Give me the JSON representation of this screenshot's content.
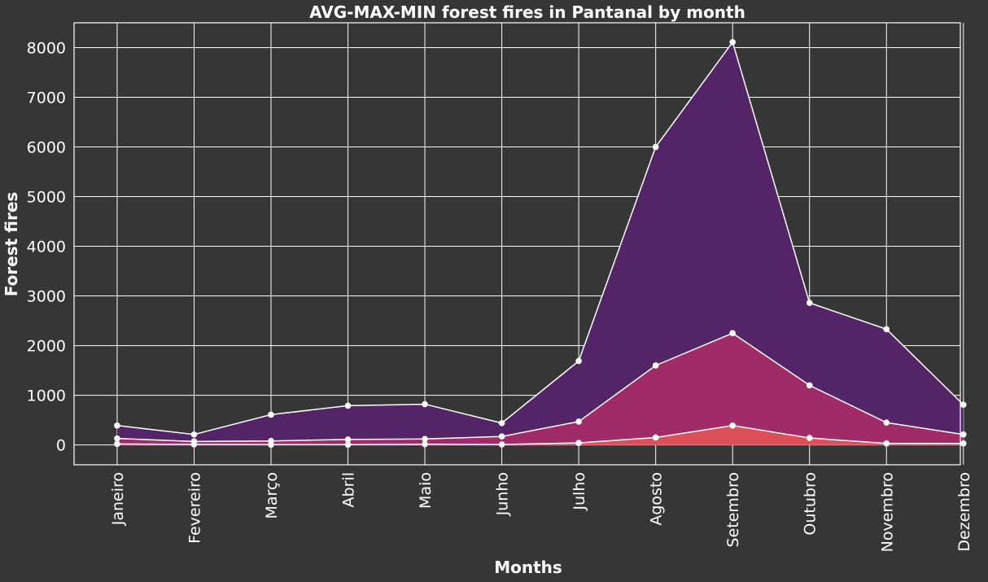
{
  "chart_data": {
    "type": "area",
    "title": "AVG-MAX-MIN forest fires in Pantanal by month",
    "xlabel": "Months",
    "ylabel": "Forest fires",
    "categories": [
      "Janeiro",
      "Fevereiro",
      "Março",
      "Abril",
      "Maio",
      "Junho",
      "Julho",
      "Agosto",
      "Setembro",
      "Outubro",
      "Novembro",
      "Dezembro"
    ],
    "ylim": [
      -400,
      8500
    ],
    "yticks": [
      0,
      1000,
      2000,
      3000,
      4000,
      5000,
      6000,
      7000,
      8000
    ],
    "grid": true,
    "series": [
      {
        "values": [
          390,
          210,
          610,
          790,
          820,
          440,
          1690,
          6000,
          8110,
          2860,
          2330,
          810
        ],
        "color": "#532466"
      },
      {
        "values": [
          130,
          70,
          80,
          110,
          120,
          170,
          470,
          1600,
          2250,
          1200,
          450,
          210
        ],
        "color": "#a02b68"
      },
      {
        "values": [
          20,
          10,
          5,
          5,
          15,
          10,
          40,
          150,
          390,
          140,
          30,
          30
        ],
        "color": "#dd4f56"
      }
    ]
  }
}
